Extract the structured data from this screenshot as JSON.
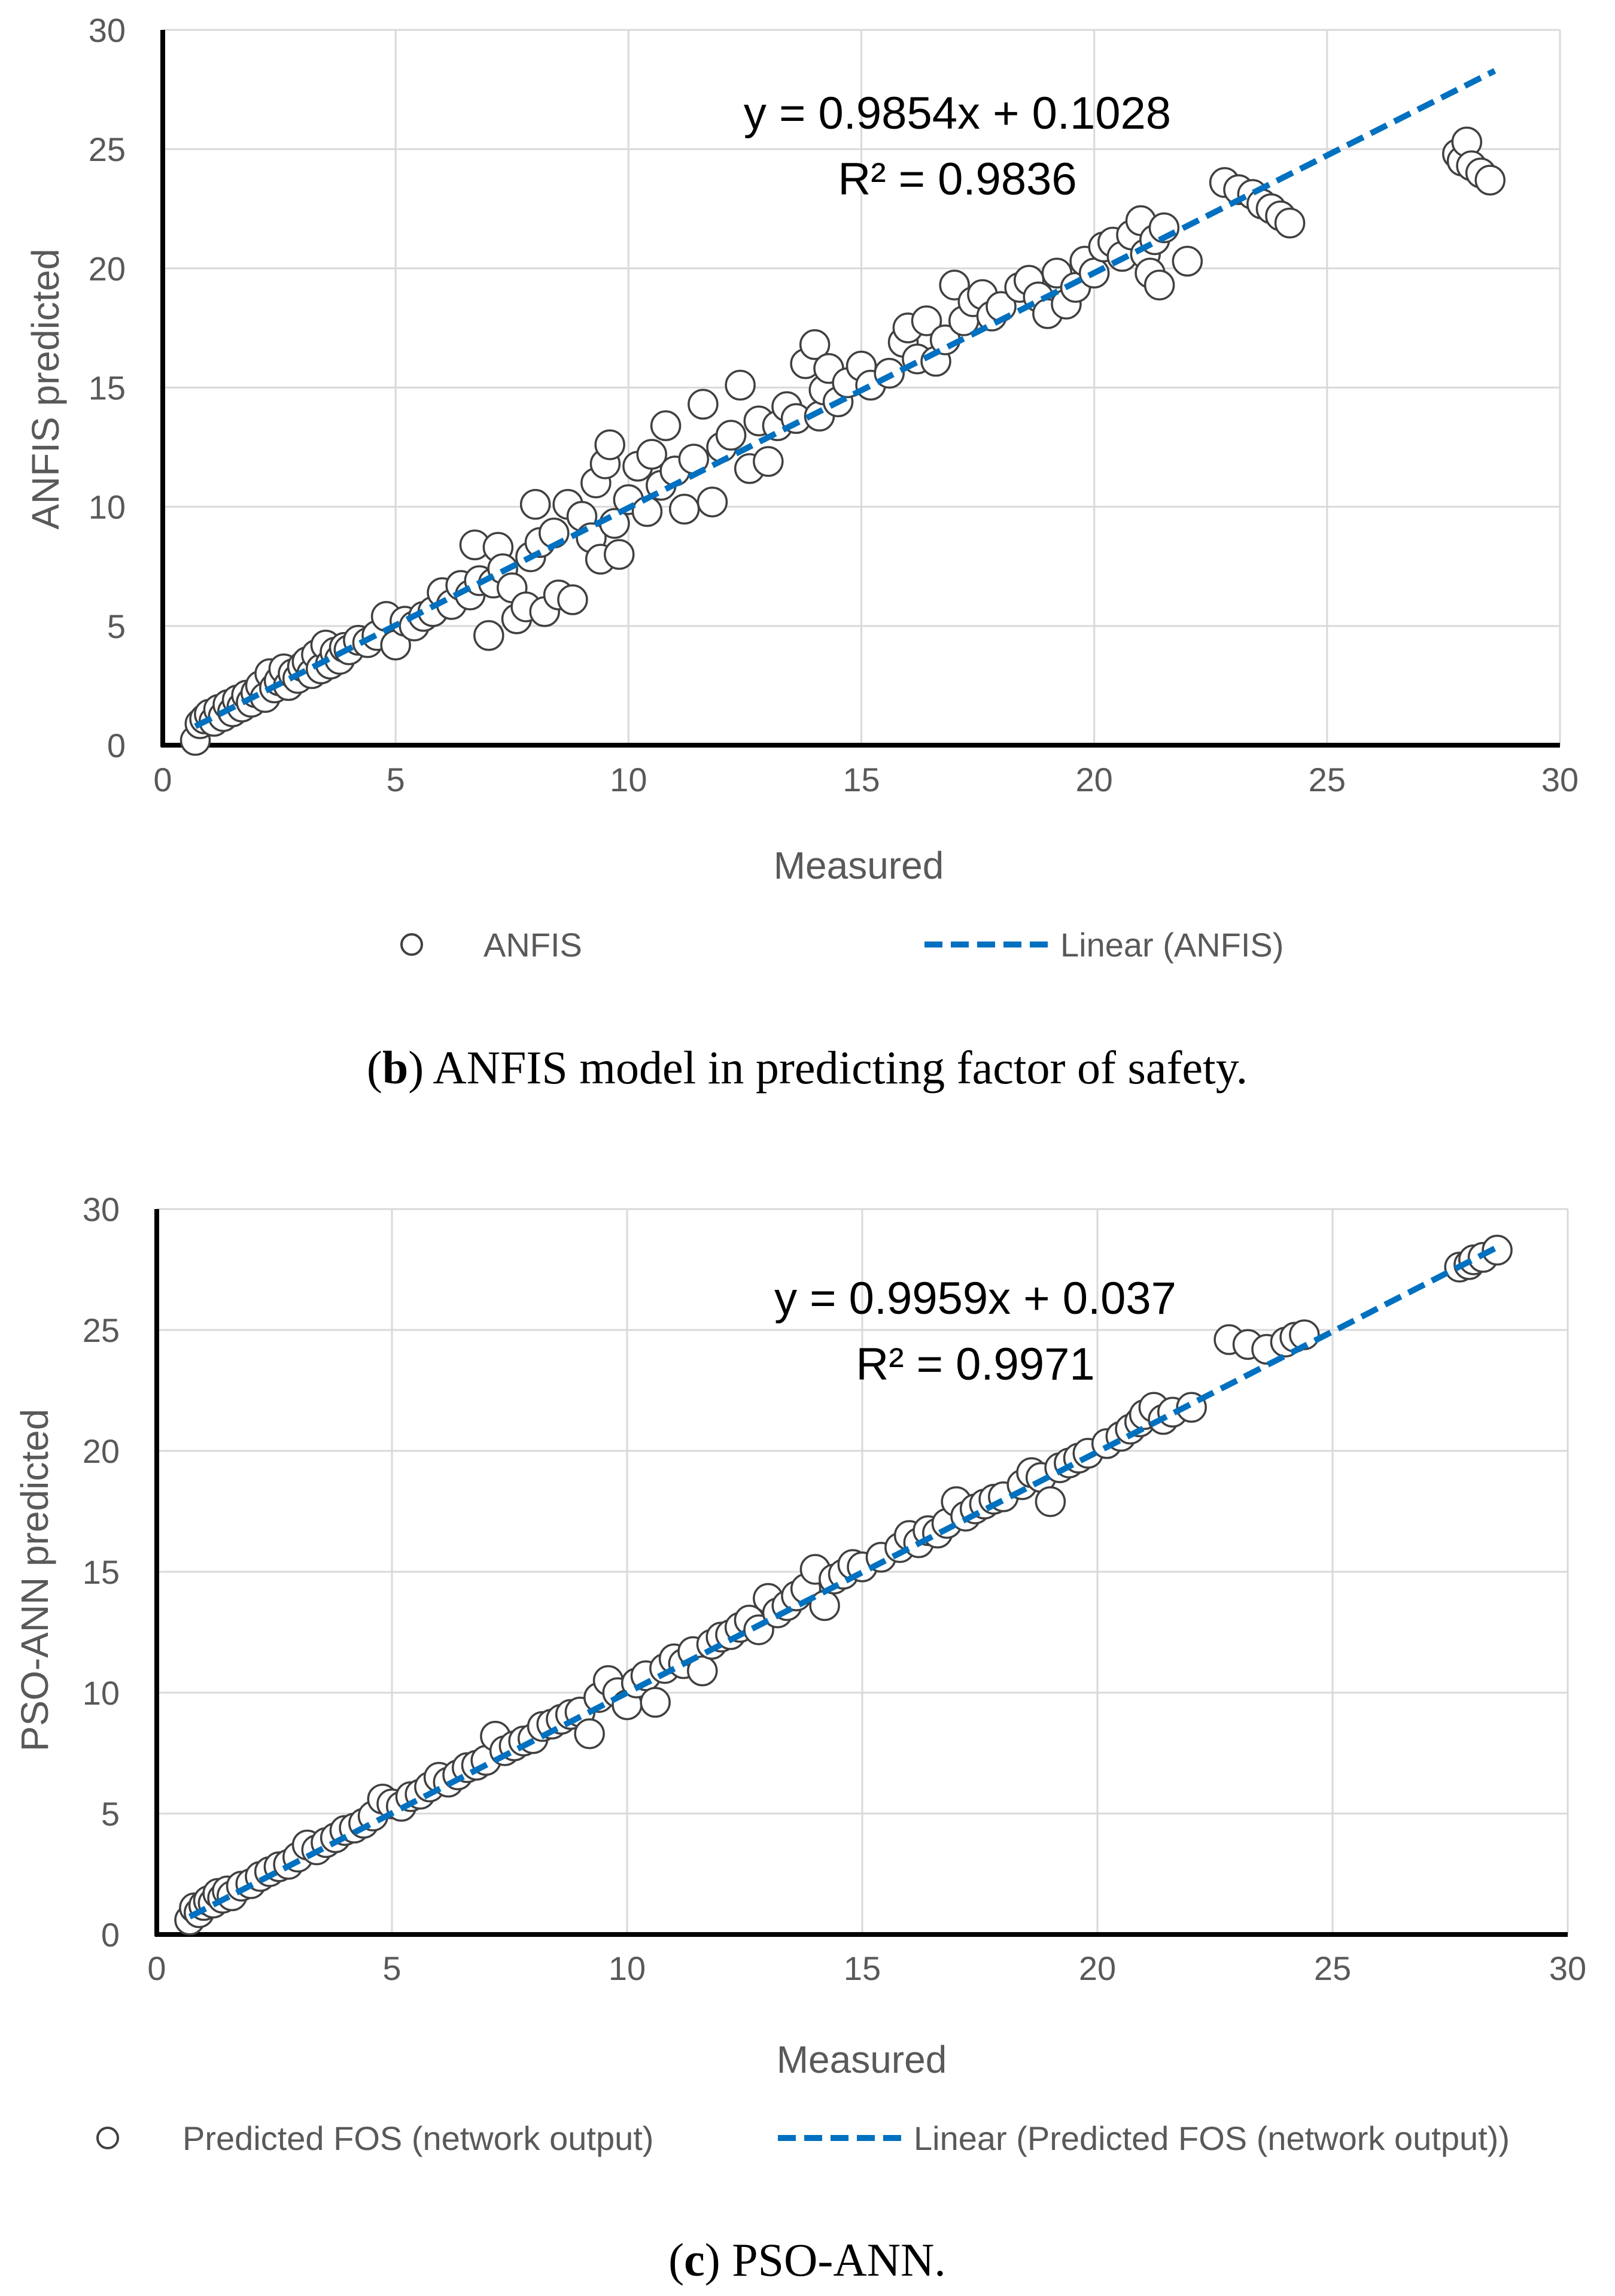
{
  "chart_data": [
    {
      "type": "scatter",
      "id": "b",
      "xlabel": "Measured",
      "ylabel": "ANFIS predicted",
      "xlim": [
        0,
        30
      ],
      "ylim": [
        0,
        30
      ],
      "xticks": [
        0,
        5,
        10,
        15,
        20,
        25,
        30
      ],
      "yticks": [
        0,
        5,
        10,
        15,
        20,
        25,
        30
      ],
      "grid": true,
      "legend_placement": "bottom",
      "equation": "y = 0.9854x + 0.1028",
      "r_squared": "R² = 0.9836",
      "trendline": {
        "name": "Linear (ANFIS)",
        "slope": 0.9854,
        "intercept": 0.1028,
        "x_range": [
          0.7,
          28.6
        ],
        "color": "#0070C0",
        "style": "dashed"
      },
      "series": [
        {
          "name": "ANFIS",
          "marker": "open-circle",
          "points": [
            [
              0.7,
              0.2
            ],
            [
              0.8,
              0.9
            ],
            [
              0.9,
              1.1
            ],
            [
              1.0,
              1.3
            ],
            [
              1.1,
              1.0
            ],
            [
              1.2,
              1.5
            ],
            [
              1.3,
              1.2
            ],
            [
              1.4,
              1.7
            ],
            [
              1.5,
              1.4
            ],
            [
              1.6,
              1.9
            ],
            [
              1.7,
              1.6
            ],
            [
              1.8,
              2.1
            ],
            [
              1.9,
              1.8
            ],
            [
              2.0,
              2.2
            ],
            [
              2.1,
              2.5
            ],
            [
              2.2,
              2.0
            ],
            [
              2.3,
              3.0
            ],
            [
              2.4,
              2.4
            ],
            [
              2.5,
              2.7
            ],
            [
              2.6,
              3.2
            ],
            [
              2.7,
              2.5
            ],
            [
              2.8,
              3.0
            ],
            [
              2.9,
              2.8
            ],
            [
              3.0,
              3.3
            ],
            [
              3.1,
              3.5
            ],
            [
              3.2,
              3.0
            ],
            [
              3.3,
              3.8
            ],
            [
              3.4,
              3.2
            ],
            [
              3.5,
              4.2
            ],
            [
              3.6,
              3.4
            ],
            [
              3.7,
              3.9
            ],
            [
              3.8,
              3.6
            ],
            [
              3.9,
              4.1
            ],
            [
              4.0,
              4.0
            ],
            [
              4.2,
              4.4
            ],
            [
              4.4,
              4.3
            ],
            [
              4.6,
              4.6
            ],
            [
              4.8,
              5.4
            ],
            [
              5.0,
              4.2
            ],
            [
              5.2,
              5.2
            ],
            [
              5.4,
              5.0
            ],
            [
              5.6,
              5.4
            ],
            [
              5.8,
              5.6
            ],
            [
              6.0,
              6.4
            ],
            [
              6.2,
              5.9
            ],
            [
              6.4,
              6.7
            ],
            [
              6.6,
              6.3
            ],
            [
              6.7,
              8.4
            ],
            [
              6.8,
              6.9
            ],
            [
              7.0,
              4.6
            ],
            [
              7.1,
              6.8
            ],
            [
              7.2,
              8.3
            ],
            [
              7.3,
              7.4
            ],
            [
              7.5,
              6.6
            ],
            [
              7.6,
              5.3
            ],
            [
              7.8,
              5.8
            ],
            [
              7.9,
              7.9
            ],
            [
              8.0,
              10.1
            ],
            [
              8.1,
              8.5
            ],
            [
              8.2,
              5.6
            ],
            [
              8.4,
              8.9
            ],
            [
              8.5,
              6.3
            ],
            [
              8.7,
              10.1
            ],
            [
              8.8,
              6.1
            ],
            [
              9.0,
              9.6
            ],
            [
              9.2,
              8.7
            ],
            [
              9.3,
              11.0
            ],
            [
              9.4,
              7.8
            ],
            [
              9.5,
              11.8
            ],
            [
              9.6,
              12.6
            ],
            [
              9.7,
              9.3
            ],
            [
              9.8,
              8.0
            ],
            [
              10.0,
              10.3
            ],
            [
              10.2,
              11.7
            ],
            [
              10.4,
              9.8
            ],
            [
              10.5,
              12.2
            ],
            [
              10.7,
              10.9
            ],
            [
              10.8,
              13.4
            ],
            [
              11.0,
              11.5
            ],
            [
              11.2,
              9.9
            ],
            [
              11.4,
              12.0
            ],
            [
              11.6,
              14.3
            ],
            [
              11.8,
              10.2
            ],
            [
              12.0,
              12.5
            ],
            [
              12.2,
              13.0
            ],
            [
              12.4,
              15.1
            ],
            [
              12.6,
              11.6
            ],
            [
              12.8,
              13.6
            ],
            [
              13.0,
              11.9
            ],
            [
              13.2,
              13.4
            ],
            [
              13.4,
              14.2
            ],
            [
              13.6,
              13.7
            ],
            [
              13.8,
              16.0
            ],
            [
              14.0,
              16.8
            ],
            [
              14.1,
              13.8
            ],
            [
              14.2,
              14.9
            ],
            [
              14.3,
              15.8
            ],
            [
              14.5,
              14.4
            ],
            [
              14.7,
              15.2
            ],
            [
              15.0,
              15.9
            ],
            [
              15.2,
              15.1
            ],
            [
              15.6,
              15.6
            ],
            [
              15.9,
              16.9
            ],
            [
              16.0,
              17.5
            ],
            [
              16.2,
              16.2
            ],
            [
              16.4,
              17.8
            ],
            [
              16.6,
              16.1
            ],
            [
              16.8,
              17.0
            ],
            [
              17.0,
              19.3
            ],
            [
              17.2,
              17.8
            ],
            [
              17.4,
              18.6
            ],
            [
              17.6,
              18.9
            ],
            [
              17.8,
              18.0
            ],
            [
              18.0,
              18.4
            ],
            [
              18.4,
              19.2
            ],
            [
              18.6,
              19.5
            ],
            [
              18.8,
              18.8
            ],
            [
              19.0,
              18.1
            ],
            [
              19.2,
              19.8
            ],
            [
              19.4,
              18.5
            ],
            [
              19.6,
              19.2
            ],
            [
              19.8,
              20.3
            ],
            [
              20.0,
              19.8
            ],
            [
              20.2,
              20.9
            ],
            [
              20.4,
              21.1
            ],
            [
              20.6,
              20.5
            ],
            [
              20.8,
              21.4
            ],
            [
              21.0,
              22.0
            ],
            [
              21.1,
              20.6
            ],
            [
              21.2,
              19.8
            ],
            [
              21.3,
              21.2
            ],
            [
              21.4,
              19.3
            ],
            [
              21.5,
              21.7
            ],
            [
              22.0,
              20.3
            ],
            [
              22.8,
              23.6
            ],
            [
              23.1,
              23.3
            ],
            [
              23.4,
              23.1
            ],
            [
              23.6,
              22.7
            ],
            [
              23.8,
              22.5
            ],
            [
              24.0,
              22.2
            ],
            [
              24.2,
              21.9
            ],
            [
              27.8,
              24.8
            ],
            [
              27.9,
              24.5
            ],
            [
              28.0,
              25.3
            ],
            [
              28.1,
              24.3
            ],
            [
              28.3,
              24.0
            ],
            [
              28.5,
              23.7
            ]
          ]
        }
      ]
    },
    {
      "type": "scatter",
      "id": "c",
      "xlabel": "Measured",
      "ylabel": "PSO-ANN predicted",
      "xlim": [
        0,
        30
      ],
      "ylim": [
        0,
        30
      ],
      "xticks": [
        0,
        5,
        10,
        15,
        20,
        25,
        30
      ],
      "yticks": [
        0,
        5,
        10,
        15,
        20,
        25,
        30
      ],
      "grid": true,
      "legend_placement": "bottom",
      "equation": "y = 0.9959x + 0.037",
      "r_squared": "R² = 0.9971",
      "trendline": {
        "name": "Linear (Predicted FOS (network output))",
        "slope": 0.9959,
        "intercept": 0.037,
        "x_range": [
          0.7,
          28.6
        ],
        "color": "#0070C0",
        "style": "dashed"
      },
      "series": [
        {
          "name": "Predicted FOS (network output)",
          "marker": "open-circle",
          "points": [
            [
              0.7,
              0.6
            ],
            [
              0.8,
              1.1
            ],
            [
              0.9,
              0.9
            ],
            [
              1.0,
              1.2
            ],
            [
              1.1,
              1.4
            ],
            [
              1.2,
              1.3
            ],
            [
              1.3,
              1.7
            ],
            [
              1.4,
              1.5
            ],
            [
              1.5,
              1.8
            ],
            [
              1.6,
              1.6
            ],
            [
              1.8,
              2.0
            ],
            [
              2.0,
              2.1
            ],
            [
              2.2,
              2.4
            ],
            [
              2.4,
              2.6
            ],
            [
              2.6,
              2.8
            ],
            [
              2.8,
              2.9
            ],
            [
              3.0,
              3.2
            ],
            [
              3.2,
              3.7
            ],
            [
              3.4,
              3.5
            ],
            [
              3.6,
              3.8
            ],
            [
              3.8,
              4.0
            ],
            [
              4.0,
              4.3
            ],
            [
              4.2,
              4.4
            ],
            [
              4.4,
              4.6
            ],
            [
              4.6,
              4.9
            ],
            [
              4.8,
              5.6
            ],
            [
              5.0,
              5.4
            ],
            [
              5.2,
              5.3
            ],
            [
              5.4,
              5.7
            ],
            [
              5.6,
              5.8
            ],
            [
              5.8,
              6.1
            ],
            [
              6.0,
              6.5
            ],
            [
              6.2,
              6.3
            ],
            [
              6.4,
              6.6
            ],
            [
              6.6,
              6.9
            ],
            [
              6.8,
              7.0
            ],
            [
              7.0,
              7.2
            ],
            [
              7.2,
              8.2
            ],
            [
              7.4,
              7.6
            ],
            [
              7.6,
              7.8
            ],
            [
              7.8,
              8.0
            ],
            [
              8.0,
              8.1
            ],
            [
              8.2,
              8.6
            ],
            [
              8.4,
              8.7
            ],
            [
              8.6,
              8.9
            ],
            [
              8.8,
              9.1
            ],
            [
              9.0,
              9.2
            ],
            [
              9.2,
              8.3
            ],
            [
              9.4,
              9.8
            ],
            [
              9.6,
              10.5
            ],
            [
              9.8,
              10.0
            ],
            [
              10.0,
              9.5
            ],
            [
              10.2,
              10.4
            ],
            [
              10.4,
              10.7
            ],
            [
              10.6,
              9.6
            ],
            [
              10.8,
              11.0
            ],
            [
              11.0,
              11.4
            ],
            [
              11.2,
              11.2
            ],
            [
              11.4,
              11.7
            ],
            [
              11.6,
              10.9
            ],
            [
              11.8,
              12.0
            ],
            [
              12.0,
              12.3
            ],
            [
              12.2,
              12.4
            ],
            [
              12.4,
              12.7
            ],
            [
              12.6,
              13.0
            ],
            [
              12.8,
              12.6
            ],
            [
              13.0,
              13.9
            ],
            [
              13.2,
              13.3
            ],
            [
              13.4,
              13.6
            ],
            [
              13.6,
              14.0
            ],
            [
              13.8,
              14.3
            ],
            [
              14.0,
              15.1
            ],
            [
              14.2,
              13.6
            ],
            [
              14.4,
              14.7
            ],
            [
              14.6,
              14.9
            ],
            [
              14.8,
              15.3
            ],
            [
              15.0,
              15.2
            ],
            [
              15.4,
              15.6
            ],
            [
              15.8,
              16.0
            ],
            [
              16.0,
              16.5
            ],
            [
              16.2,
              16.2
            ],
            [
              16.4,
              16.7
            ],
            [
              16.6,
              16.6
            ],
            [
              16.8,
              17.0
            ],
            [
              17.0,
              17.9
            ],
            [
              17.2,
              17.3
            ],
            [
              17.4,
              17.6
            ],
            [
              17.6,
              17.8
            ],
            [
              17.8,
              18.0
            ],
            [
              18.0,
              18.1
            ],
            [
              18.4,
              18.6
            ],
            [
              18.6,
              19.1
            ],
            [
              18.8,
              18.9
            ],
            [
              19.0,
              17.9
            ],
            [
              19.2,
              19.3
            ],
            [
              19.4,
              19.5
            ],
            [
              19.6,
              19.7
            ],
            [
              19.8,
              19.9
            ],
            [
              20.2,
              20.3
            ],
            [
              20.5,
              20.6
            ],
            [
              20.7,
              20.9
            ],
            [
              20.9,
              21.2
            ],
            [
              21.0,
              21.5
            ],
            [
              21.2,
              21.8
            ],
            [
              21.4,
              21.3
            ],
            [
              21.6,
              21.6
            ],
            [
              22.0,
              21.8
            ],
            [
              22.8,
              24.6
            ],
            [
              23.2,
              24.4
            ],
            [
              23.6,
              24.2
            ],
            [
              24.0,
              24.5
            ],
            [
              24.2,
              24.7
            ],
            [
              24.4,
              24.8
            ],
            [
              27.7,
              27.6
            ],
            [
              27.9,
              27.7
            ],
            [
              28.0,
              27.9
            ],
            [
              28.2,
              28.0
            ],
            [
              28.5,
              28.3
            ]
          ]
        }
      ]
    }
  ],
  "captions": [
    {
      "label": "b",
      "prefix": "(",
      "suffix": ") ANFIS model in predicting factor of safety."
    },
    {
      "label": "c",
      "prefix": "(",
      "suffix": ") PSO-ANN."
    }
  ]
}
